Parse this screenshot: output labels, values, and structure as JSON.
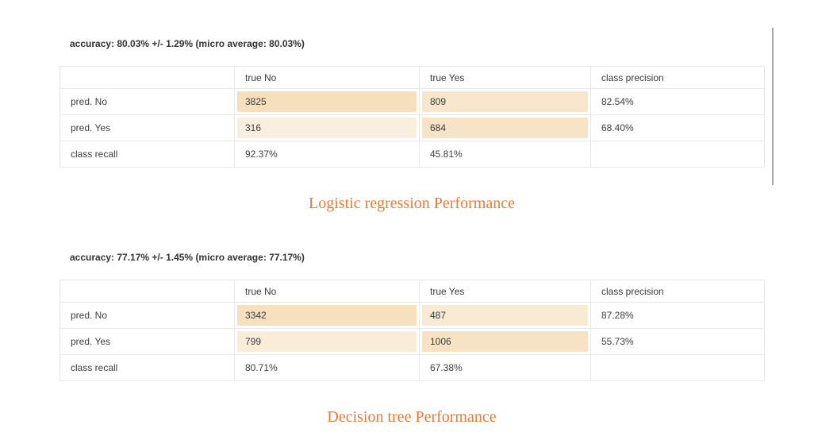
{
  "styles": {
    "caption_color": "#e87b35"
  },
  "scrollbar": {
    "present": true
  },
  "sections": [
    {
      "id": "logistic-regression",
      "accuracy_line": "accuracy: 80.03% +/- 1.29% (micro average: 80.03%)",
      "caption": "Logistic regression Performance",
      "table": {
        "headers": [
          "",
          "true No",
          "true Yes",
          "class precision"
        ],
        "rows": [
          {
            "label": "pred. No",
            "cells": [
              {
                "text": "3825",
                "bg": "#f6dfbc"
              },
              {
                "text": "809",
                "bg": "#f8e7cc"
              },
              {
                "text": "82.54%",
                "bg": ""
              }
            ]
          },
          {
            "label": "pred. Yes",
            "cells": [
              {
                "text": "316",
                "bg": "#faefdf"
              },
              {
                "text": "684",
                "bg": "#f7e4c6"
              },
              {
                "text": "68.40%",
                "bg": ""
              }
            ]
          },
          {
            "label": "class recall",
            "cells": [
              {
                "text": "92.37%",
                "bg": ""
              },
              {
                "text": "45.81%",
                "bg": ""
              },
              {
                "text": "",
                "bg": ""
              }
            ]
          }
        ]
      }
    },
    {
      "id": "decision-tree",
      "accuracy_line": "accuracy: 77.17% +/- 1.45% (micro average: 77.17%)",
      "caption": "Decision tree Performance",
      "table": {
        "headers": [
          "",
          "true No",
          "true Yes",
          "class precision"
        ],
        "rows": [
          {
            "label": "pred. No",
            "cells": [
              {
                "text": "3342",
                "bg": "#f6e0be"
              },
              {
                "text": "487",
                "bg": "#f9ead3"
              },
              {
                "text": "87.28%",
                "bg": ""
              }
            ]
          },
          {
            "label": "pred. Yes",
            "cells": [
              {
                "text": "799",
                "bg": "#f9ecd9"
              },
              {
                "text": "1006",
                "bg": "#f7e3c4"
              },
              {
                "text": "55.73%",
                "bg": ""
              }
            ]
          },
          {
            "label": "class recall",
            "cells": [
              {
                "text": "80.71%",
                "bg": ""
              },
              {
                "text": "67.38%",
                "bg": ""
              },
              {
                "text": "",
                "bg": ""
              }
            ]
          }
        ]
      }
    }
  ]
}
